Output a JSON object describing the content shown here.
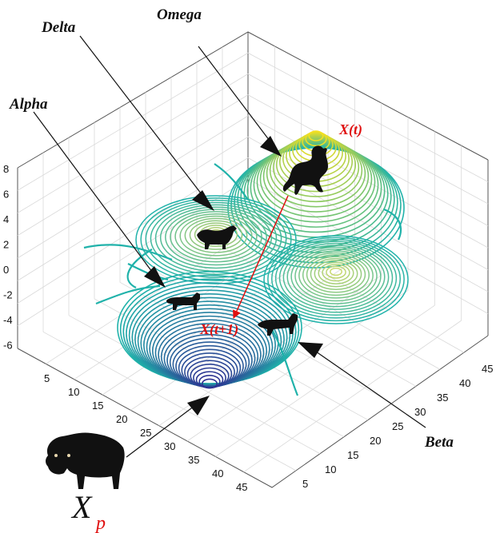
{
  "labels": {
    "omega": "Omega",
    "delta": "Delta",
    "alpha": "Alpha",
    "beta": "Beta",
    "current_position": "X(t)",
    "next_position": "X(t+1)",
    "prey_main": "X",
    "prey_sub": "p"
  },
  "axes": {
    "z_ticks": [
      "8",
      "6",
      "4",
      "2",
      "0",
      "-2",
      "-4",
      "-6"
    ],
    "x_ticks": [
      "5",
      "10",
      "15",
      "20",
      "25",
      "30",
      "35",
      "40",
      "45"
    ],
    "y_ticks": [
      "5",
      "10",
      "15",
      "20",
      "25",
      "30",
      "35",
      "40",
      "45"
    ]
  },
  "colors": {
    "contour_low": "#2e3192",
    "contour_mid": "#20b2aa",
    "contour_high": "#f5e020",
    "accent": "#e01010",
    "ink": "#111111"
  },
  "icons": {
    "wolf": "wolf-silhouette-icon",
    "bison": "bison-silhouette-icon"
  }
}
